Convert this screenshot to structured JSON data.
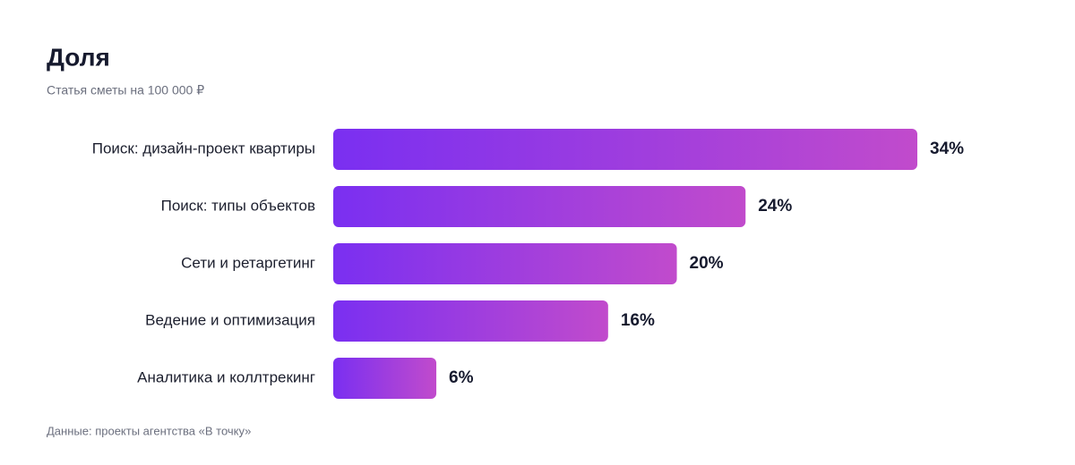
{
  "chart_data": {
    "type": "bar",
    "orientation": "horizontal",
    "title": "Доля",
    "subtitle": "Статья сметы на 100 000 ₽",
    "categories": [
      "Поиск: дизайн-проект квартиры",
      "Поиск: типы объектов",
      "Сети и ретаргетинг",
      "Ведение и оптимизация",
      "Аналитика и коллтрекинг"
    ],
    "values": [
      34,
      24,
      20,
      16,
      6
    ],
    "value_labels": [
      "34%",
      "24%",
      "20%",
      "16%",
      "6%"
    ],
    "gradient": [
      "#7a2ff1",
      "#c14bcc"
    ],
    "source": "Данные: проекты агентства «В точку»"
  }
}
